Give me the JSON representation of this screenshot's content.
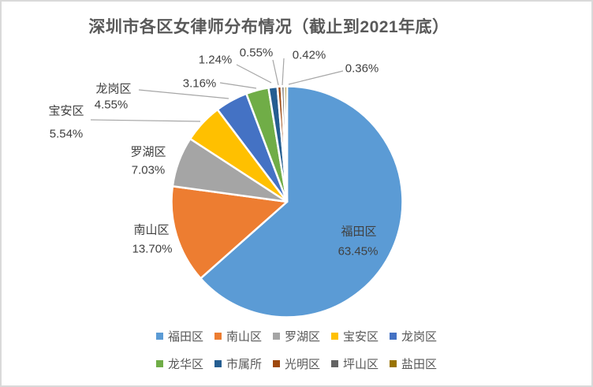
{
  "title": "深圳市各区女律师分布情况（截止到2021年底）",
  "chart_data": {
    "type": "pie",
    "title": "深圳市各区女律师分布情况（截止到2021年底）",
    "value_format": "percent",
    "total": 100,
    "start_angle_deg": 0,
    "direction": "clockwise",
    "legend_position": "bottom",
    "label_text_color": "#404040",
    "legend_text_color": "#595959",
    "leader_line_color": "#A6A6A6",
    "series": [
      {
        "name": "福田区",
        "value": 63.45,
        "color": "#5B9BD5",
        "label_lines": [
          "福田区",
          "63.45%"
        ],
        "label_placement": "inside",
        "leader_line": false
      },
      {
        "name": "南山区",
        "value": 13.7,
        "color": "#ED7D31",
        "label_lines": [
          "南山区",
          "13.70%"
        ],
        "label_placement": "outside",
        "leader_line": false
      },
      {
        "name": "罗湖区",
        "value": 7.03,
        "color": "#A5A5A5",
        "label_lines": [
          "罗湖区",
          "7.03%"
        ],
        "label_placement": "outside",
        "leader_line": false
      },
      {
        "name": "宝安区",
        "value": 5.54,
        "color": "#FFC000",
        "label_lines": [
          "宝安区",
          "5.54%"
        ],
        "label_placement": "outside",
        "leader_line": true
      },
      {
        "name": "龙岗区",
        "value": 4.55,
        "color": "#4472C4",
        "label_lines": [
          "龙岗区",
          "4.55%"
        ],
        "label_placement": "outside",
        "leader_line": true
      },
      {
        "name": "龙华区",
        "value": 3.16,
        "color": "#70AD47",
        "label_lines": [
          "3.16%"
        ],
        "label_placement": "outside",
        "leader_line": true
      },
      {
        "name": "市属所",
        "value": 1.24,
        "color": "#255E91",
        "label_lines": [
          "1.24%"
        ],
        "label_placement": "outside",
        "leader_line": true
      },
      {
        "name": "光明区",
        "value": 0.55,
        "color": "#9E480E",
        "label_lines": [
          "0.55%"
        ],
        "label_placement": "outside",
        "leader_line": true
      },
      {
        "name": "坪山区",
        "value": 0.42,
        "color": "#636363",
        "label_lines": [
          "0.42%"
        ],
        "label_placement": "outside",
        "leader_line": true
      },
      {
        "name": "盐田区",
        "value": 0.36,
        "color": "#997300",
        "label_lines": [
          "0.36%"
        ],
        "label_placement": "outside",
        "leader_line": true
      }
    ],
    "legend_rows": [
      [
        "福田区",
        "南山区",
        "罗湖区",
        "宝安区",
        "龙岗区"
      ],
      [
        "龙华区",
        "市属所",
        "光明区",
        "坪山区",
        "盐田区"
      ]
    ]
  }
}
